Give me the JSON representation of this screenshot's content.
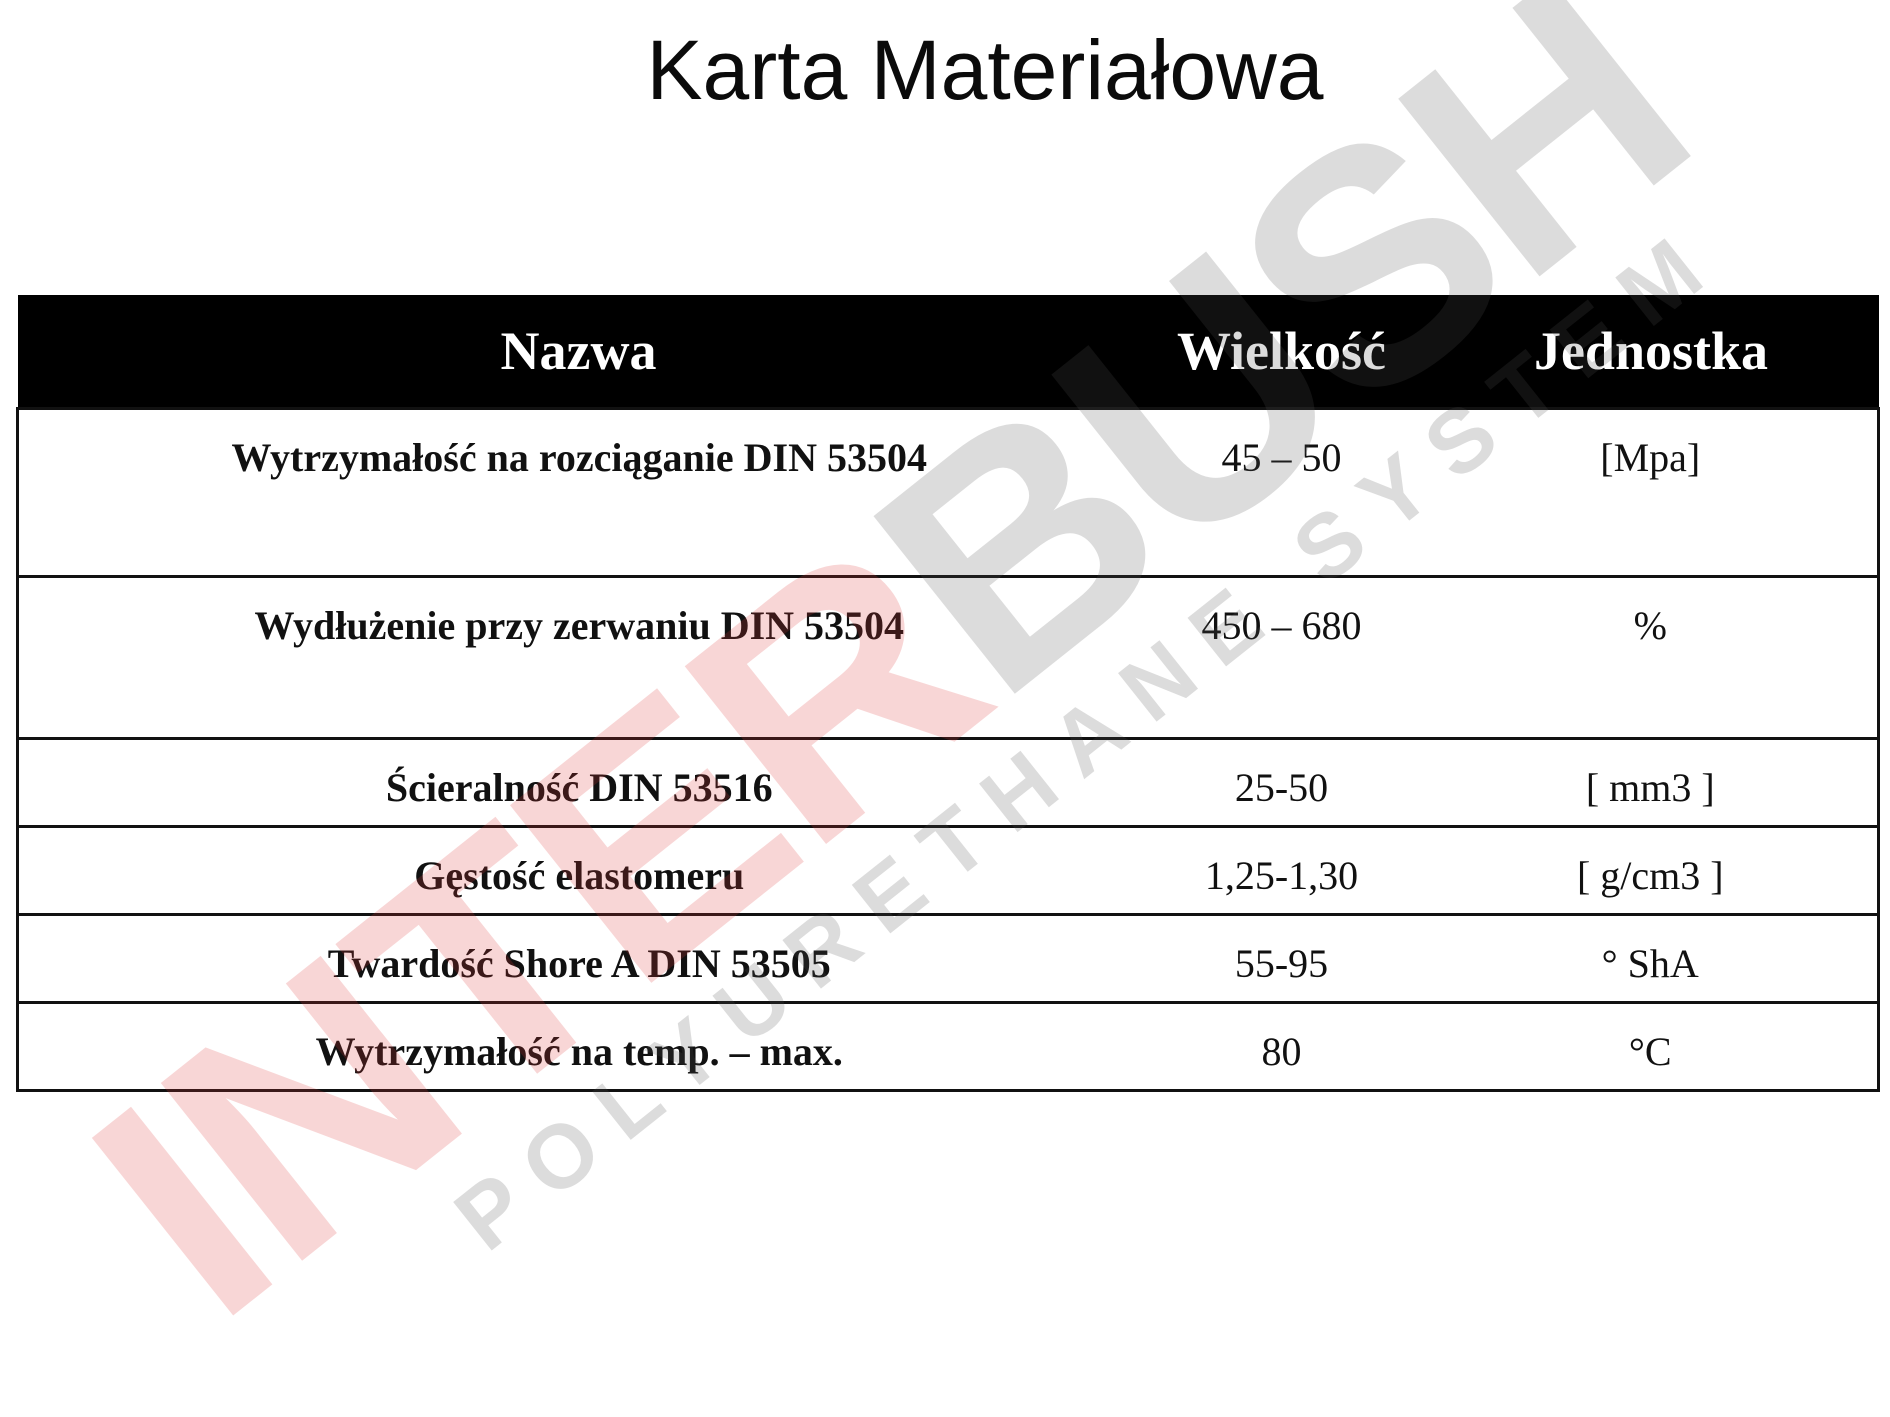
{
  "title": "Karta Materiałowa",
  "table": {
    "headers": [
      "Nazwa",
      "Wielkość",
      "Jednostka"
    ],
    "rows": [
      {
        "name": "Wytrzymałość na rozciąganie DIN 53504",
        "value": "45 – 50",
        "unit": "[Mpa]"
      },
      {
        "name": "Wydłużenie przy zerwaniu DIN 53504",
        "value": "450 – 680",
        "unit": "%"
      },
      {
        "name": "Ścieralność DIN 53516",
        "value": "25-50",
        "unit": "[ mm3 ]"
      },
      {
        "name": "Gęstość elastomeru",
        "value": "1,25-1,30",
        "unit": "[ g/cm3 ]"
      },
      {
        "name": "Twardość Shore A DIN 53505",
        "value": "55-95",
        "unit": "° ShA"
      },
      {
        "name": "Wytrzymałość na temp. – max.",
        "value": "80",
        "unit": "°C"
      }
    ]
  },
  "watermark": {
    "brand": "INTERBUSH",
    "tagline": "POLYURETHANE SYSTEM",
    "accent": "#e03a3a"
  }
}
